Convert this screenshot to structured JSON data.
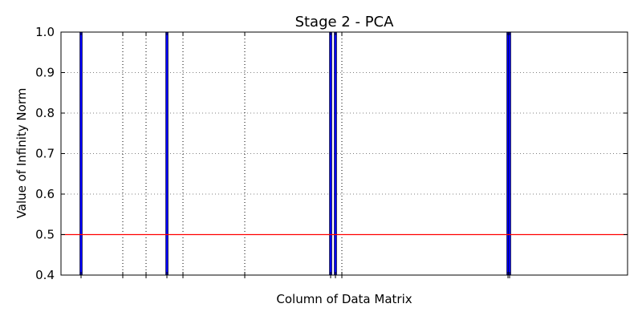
{
  "chart_data": {
    "type": "bar",
    "title": "Stage 2 - PCA",
    "xlabel": "Column of Data Matrix",
    "ylabel": "Value of Infinity Norm",
    "ylim": [
      0.4,
      1.0
    ],
    "yticks": [
      0.4,
      0.5,
      0.6,
      0.7,
      0.8,
      0.9,
      1.0
    ],
    "ytick_labels": [
      "0.4",
      "0.5",
      "0.6",
      "0.7",
      "0.8",
      "0.9",
      "1.0"
    ],
    "xticks": [
      25,
      77,
      106,
      132,
      152,
      229,
      336,
      342,
      350,
      557,
      559
    ],
    "xlim": [
      0,
      706
    ],
    "grid": true,
    "x": [
      25,
      132,
      336,
      342,
      557,
      559
    ],
    "values": [
      1.0,
      1.0,
      1.0,
      1.0,
      1.0,
      1.0
    ],
    "threshold": 0.5,
    "colors": {
      "bar": "#0000ff",
      "threshold": "#ff0000",
      "axis": "#000000",
      "grid": "#808080"
    }
  }
}
